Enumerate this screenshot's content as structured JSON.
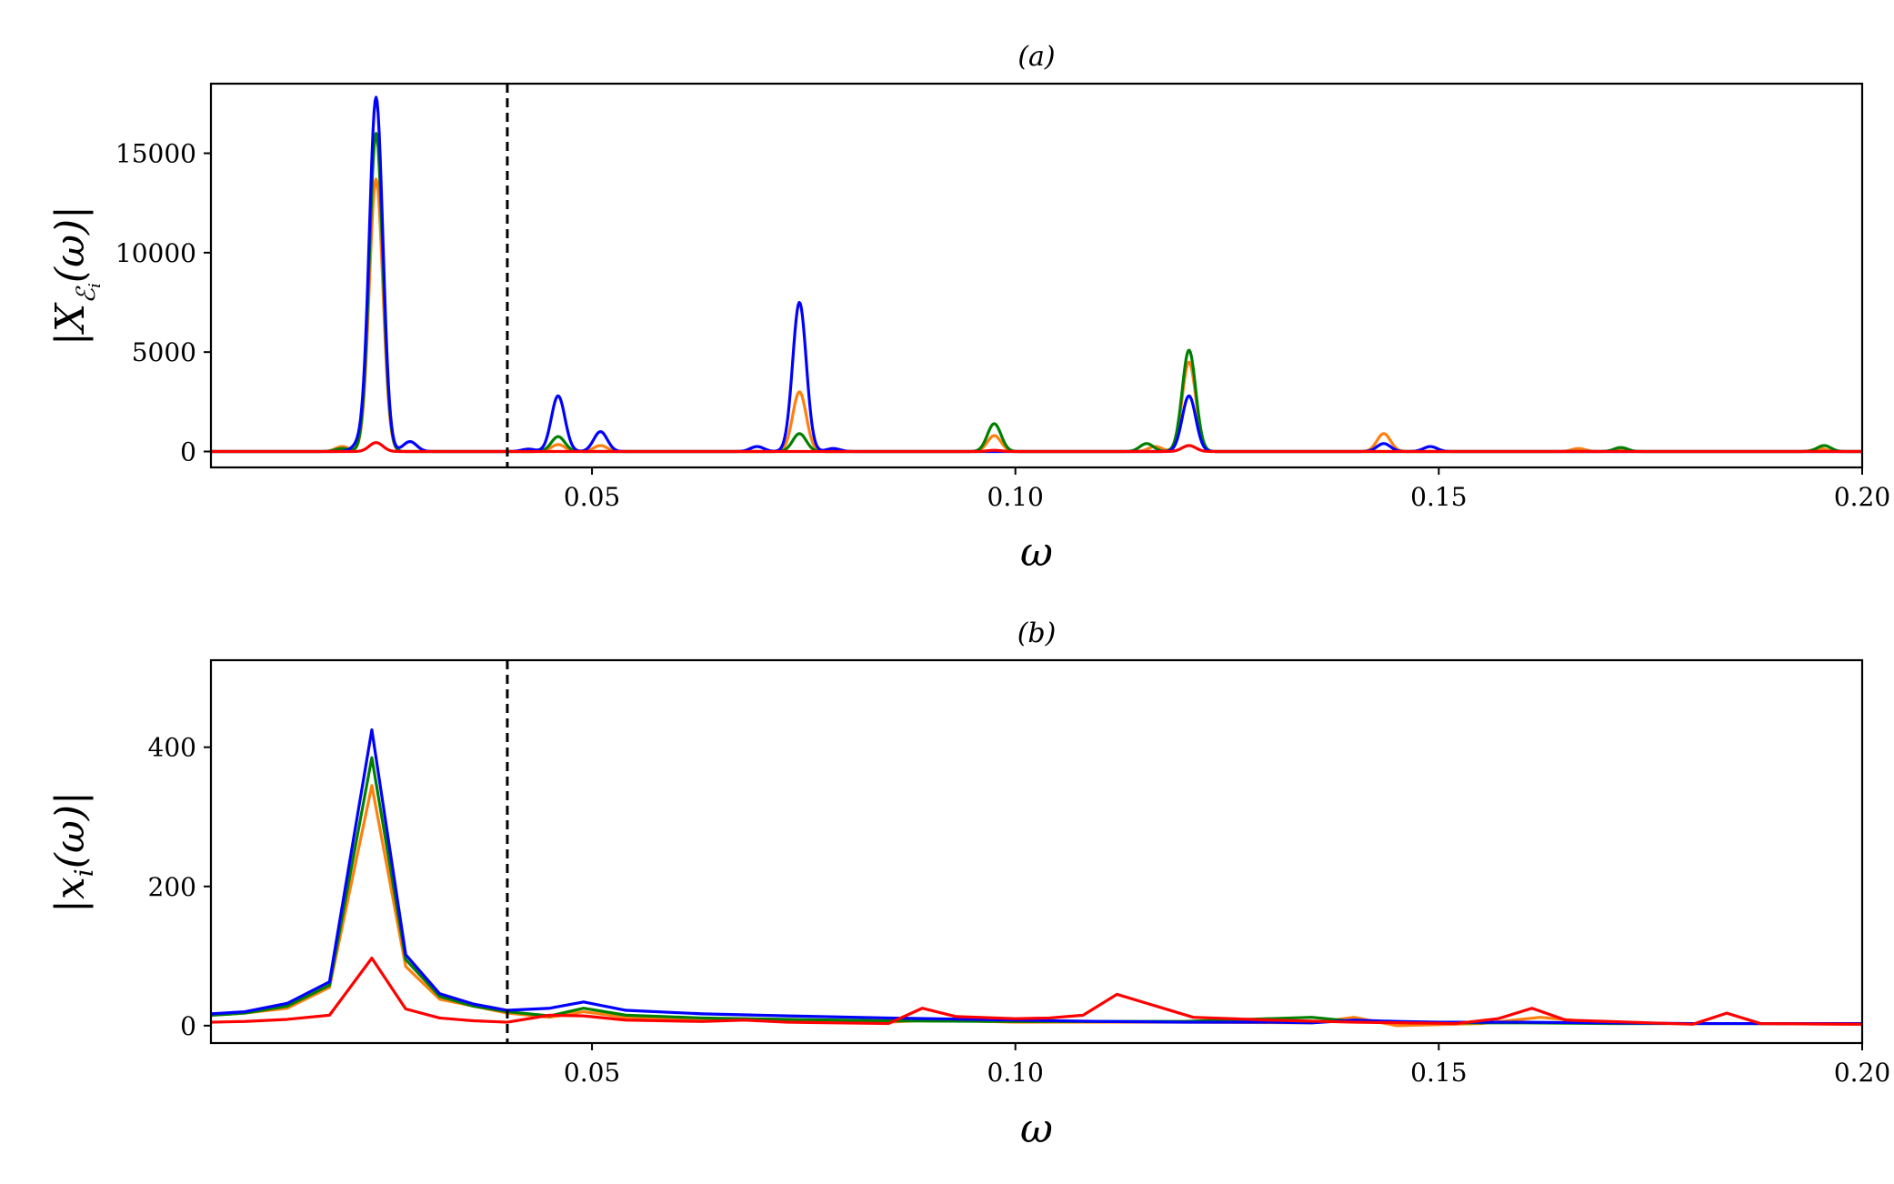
{
  "chart_data": [
    {
      "id": "a",
      "type": "line",
      "title": "(a)",
      "xlabel": "ω",
      "ylabel": "|X_{ℰ_i}(ω)|",
      "ylabel_main": "|X",
      "ylabel_sub": "ℰ",
      "ylabel_subsub": "i",
      "ylabel_tail": "(ω)|",
      "xlim": [
        0.005,
        0.2
      ],
      "ylim": [
        -800,
        18500
      ],
      "xticks": [
        0.05,
        0.1,
        0.15,
        0.2
      ],
      "xtick_labels": [
        "0.05",
        "0.10",
        "0.15",
        "0.20"
      ],
      "yticks": [
        0,
        5000,
        10000,
        15000
      ],
      "ytick_labels": [
        "0",
        "5000",
        "10000",
        "15000"
      ],
      "vline": 0.04,
      "grid": false,
      "series": [
        {
          "color": "#ff7f0e",
          "peaks": [
            [
              0.0245,
              13700,
              0.0008
            ],
            [
              0.0205,
              250,
              0.0008
            ],
            [
              0.046,
              350,
              0.0008
            ],
            [
              0.051,
              300,
              0.0008
            ],
            [
              0.0745,
              3000,
              0.0008
            ],
            [
              0.0975,
              800,
              0.0008
            ],
            [
              0.1205,
              4500,
              0.0008
            ],
            [
              0.1165,
              250,
              0.0008
            ],
            [
              0.1435,
              900,
              0.0008
            ],
            [
              0.1665,
              150,
              0.0008
            ],
            [
              0.1715,
              100,
              0.0008
            ],
            [
              0.195,
              150,
              0.0008
            ]
          ]
        },
        {
          "color": "#008000",
          "peaks": [
            [
              0.0245,
              16000,
              0.0008
            ],
            [
              0.0205,
              150,
              0.0008
            ],
            [
              0.046,
              750,
              0.0008
            ],
            [
              0.0745,
              900,
              0.0008
            ],
            [
              0.0975,
              1400,
              0.0008
            ],
            [
              0.1205,
              5100,
              0.0008
            ],
            [
              0.1155,
              400,
              0.0008
            ],
            [
              0.1715,
              200,
              0.0008
            ],
            [
              0.1955,
              300,
              0.0008
            ]
          ]
        },
        {
          "color": "#0000ff",
          "peaks": [
            [
              0.0245,
              17800,
              0.0008
            ],
            [
              0.0225,
              350,
              0.0008
            ],
            [
              0.0285,
              500,
              0.0008
            ],
            [
              0.0425,
              120,
              0.0008
            ],
            [
              0.046,
              2800,
              0.0008
            ],
            [
              0.051,
              1000,
              0.0008
            ],
            [
              0.0745,
              7500,
              0.0008
            ],
            [
              0.0695,
              250,
              0.0008
            ],
            [
              0.0785,
              150,
              0.0008
            ],
            [
              0.1205,
              2800,
              0.0008
            ],
            [
              0.1435,
              400,
              0.0008
            ],
            [
              0.149,
              250,
              0.0008
            ]
          ]
        },
        {
          "color": "#ff0000",
          "peaks": [
            [
              0.0245,
              450,
              0.0008
            ],
            [
              0.1205,
              300,
              0.0008
            ],
            [
              0.0975,
              60,
              0.0008
            ]
          ]
        }
      ]
    },
    {
      "id": "b",
      "type": "line",
      "title": "(b)",
      "xlabel": "ω",
      "ylabel": "|x_i(ω)|",
      "ylabel_main": "|x",
      "ylabel_sub": "i",
      "ylabel_tail": "(ω)|",
      "xlim": [
        0.005,
        0.2
      ],
      "ylim": [
        -25,
        525
      ],
      "xticks": [
        0.05,
        0.1,
        0.15,
        0.2
      ],
      "xtick_labels": [
        "0.05",
        "0.10",
        "0.15",
        "0.20"
      ],
      "yticks": [
        0,
        200,
        400
      ],
      "ytick_labels": [
        "0",
        "200",
        "400"
      ],
      "vline": 0.04,
      "grid": false,
      "series": [
        {
          "color": "#ff7f0e",
          "x": [
            0.005,
            0.009,
            0.014,
            0.019,
            0.024,
            0.028,
            0.032,
            0.036,
            0.04,
            0.045,
            0.049,
            0.054,
            0.063,
            0.073,
            0.085,
            0.09,
            0.1,
            0.12,
            0.135,
            0.14,
            0.145,
            0.155,
            0.162,
            0.17,
            0.185,
            0.2
          ],
          "y": [
            15,
            18,
            25,
            55,
            345,
            85,
            38,
            28,
            18,
            12,
            20,
            12,
            9,
            7,
            5,
            8,
            5,
            5,
            4,
            12,
            0,
            3,
            12,
            3,
            3,
            2
          ]
        },
        {
          "color": "#008000",
          "x": [
            0.005,
            0.009,
            0.014,
            0.019,
            0.024,
            0.028,
            0.032,
            0.036,
            0.04,
            0.045,
            0.049,
            0.054,
            0.063,
            0.073,
            0.085,
            0.1,
            0.12,
            0.135,
            0.14,
            0.15,
            0.16,
            0.17,
            0.2
          ],
          "y": [
            15,
            18,
            28,
            58,
            385,
            95,
            42,
            28,
            20,
            14,
            25,
            15,
            11,
            9,
            7,
            6,
            6,
            12,
            6,
            4,
            4,
            3,
            3
          ]
        },
        {
          "color": "#0000ff",
          "x": [
            0.005,
            0.009,
            0.014,
            0.019,
            0.024,
            0.028,
            0.032,
            0.036,
            0.04,
            0.045,
            0.049,
            0.054,
            0.063,
            0.073,
            0.085,
            0.1,
            0.11,
            0.12,
            0.13,
            0.135,
            0.14,
            0.145,
            0.15,
            0.16,
            0.17,
            0.18,
            0.2
          ],
          "y": [
            17,
            20,
            32,
            63,
            425,
            102,
            46,
            31,
            22,
            25,
            34,
            22,
            17,
            14,
            11,
            8,
            6,
            5,
            5,
            4,
            8,
            6,
            5,
            5,
            4,
            3,
            3
          ]
        },
        {
          "color": "#ff0000",
          "x": [
            0.005,
            0.009,
            0.014,
            0.019,
            0.024,
            0.028,
            0.032,
            0.036,
            0.04,
            0.045,
            0.049,
            0.054,
            0.063,
            0.068,
            0.073,
            0.085,
            0.089,
            0.093,
            0.1,
            0.104,
            0.108,
            0.112,
            0.121,
            0.13,
            0.14,
            0.152,
            0.157,
            0.161,
            0.165,
            0.18,
            0.184,
            0.188,
            0.2
          ],
          "y": [
            5,
            6,
            9,
            15,
            97,
            24,
            11,
            7,
            5,
            15,
            14,
            8,
            6,
            8,
            5,
            3,
            25,
            13,
            10,
            11,
            15,
            45,
            12,
            8,
            5,
            3,
            10,
            25,
            8,
            2,
            18,
            3,
            2
          ]
        }
      ]
    }
  ]
}
